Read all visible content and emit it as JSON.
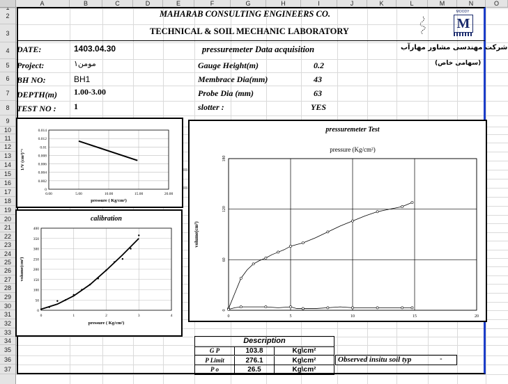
{
  "columns": [
    "A",
    "B",
    "C",
    "D",
    "E",
    "F",
    "G",
    "H",
    "I",
    "J",
    "K",
    "L",
    "M",
    "N",
    "O"
  ],
  "rows": [
    "1",
    "2",
    "3",
    "4",
    "5",
    "6",
    "7",
    "8",
    "9",
    "10",
    "11",
    "12",
    "13",
    "14",
    "15",
    "16",
    "17",
    "18",
    "19",
    "20",
    "21",
    "22",
    "23",
    "24",
    "25",
    "26",
    "27",
    "28",
    "29",
    "30",
    "31",
    "32",
    "33",
    "34",
    "35",
    "36",
    "37"
  ],
  "header": {
    "company": "MAHARAB CONSULTING ENGINEERS CO.",
    "lab": "TECHNICAL & SOIL MECHANIC LABORATORY",
    "farsi_company": "شرکت مهندسی مشاور مهارآب",
    "farsi_share": "(سهامی خاص)",
    "logo_text": "M",
    "logo_caption": "MOODY"
  },
  "fields": {
    "date_label": "DATE:",
    "date_value": "1403.04.30",
    "doc_title": "pressuremeter Data acquisition",
    "project_label": "Project:",
    "project_value": "مومن۱",
    "bh_label": "BH NO:",
    "bh_value": "BH1",
    "depth_label": "DEPTH(m)",
    "depth_value": "1.00-3.00",
    "test_label": "TEST NO :",
    "test_value": "1",
    "gauge_label": "Gauge Height(m)",
    "gauge_value": "0.2",
    "membrane_label": "Membrace Dia(mm)",
    "membrane_value": "43",
    "probe_label": "Probe Dia (mm)",
    "probe_value": "63",
    "slotter_label": "slotter :",
    "slotter_value": "YES"
  },
  "description": {
    "title": "Description",
    "rows": [
      {
        "symbol": "G P",
        "value": "103.8",
        "unit": "Kg\\cm²"
      },
      {
        "symbol": "P Limit",
        "value": "276.1",
        "unit": "Kg\\cm²"
      },
      {
        "symbol": "P o",
        "value": "26.5",
        "unit": "Kg\\cm²"
      }
    ],
    "observed_label": "Observed insitu soil typ",
    "observed_value": "-"
  },
  "chart_data": [
    {
      "type": "line",
      "title": "",
      "xlabel": "pressure ( Kg/cm²)",
      "ylabel": "1/V (cm³)⁻¹",
      "xlim": [
        0,
        20
      ],
      "ylim": [
        0,
        0.014
      ],
      "xticks": [
        "0.00",
        "5.00",
        "10.00",
        "15.00",
        "20.00"
      ],
      "yticks": [
        "0",
        "0.002",
        "0.004",
        "0.006",
        "0.008",
        "0.01",
        "0.012",
        "0.014"
      ],
      "series": [
        {
          "x": [
            5,
            14.8
          ],
          "y": [
            0.0114,
            0.0068
          ]
        }
      ],
      "grid": true
    },
    {
      "type": "scatter",
      "title": "calibration",
      "xlabel": "pressure ( Kg/cm²)",
      "ylabel": "volume(cm³)",
      "xlim": [
        0,
        4
      ],
      "ylim": [
        0,
        400
      ],
      "xticks": [
        "0",
        "1",
        "2",
        "3",
        "4"
      ],
      "yticks": [
        "0",
        "50",
        "100",
        "150",
        "200",
        "250",
        "300",
        "350",
        "400"
      ],
      "series": [
        {
          "x": [
            0,
            0.25,
            0.5,
            0.75,
            1,
            1.25,
            1.5,
            1.75,
            2,
            2.25,
            2.5,
            2.75,
            3
          ],
          "y": [
            5,
            15,
            45,
            50,
            75,
            100,
            125,
            155,
            195,
            235,
            250,
            300,
            365
          ],
          "style": "points"
        },
        {
          "x": [
            0,
            0.5,
            1,
            1.5,
            2,
            2.5,
            3
          ],
          "y": [
            5,
            30,
            70,
            125,
            195,
            270,
            350
          ],
          "style": "fit"
        }
      ],
      "grid": true
    },
    {
      "type": "line",
      "title": "pressuremeter Test",
      "subtitle": "pressure (Kg/cm²)",
      "xlabel": "",
      "ylabel": "volume(cm³)",
      "xlim": [
        0,
        20
      ],
      "ylim": [
        0,
        180
      ],
      "xticks": [
        "0",
        "5",
        "10",
        "15",
        "20"
      ],
      "yticks": [
        "0",
        "60",
        "120",
        "180"
      ],
      "series": [
        {
          "x": [
            0,
            0.5,
            1,
            1.5,
            2,
            2.5,
            3,
            3.5,
            4,
            4.5,
            5,
            5.5,
            6,
            7,
            8,
            9,
            10,
            11,
            12,
            13,
            14,
            14.8
          ],
          "y": [
            2,
            20,
            38,
            48,
            55,
            59,
            62,
            66,
            69,
            72,
            76,
            78,
            80,
            86,
            93,
            100,
            106,
            112,
            117,
            120,
            123,
            128
          ],
          "style": "line-markers"
        },
        {
          "x": [
            0,
            0.5,
            1,
            2,
            3,
            4,
            5,
            5.5,
            6,
            7,
            8,
            9,
            10,
            11,
            12,
            13,
            14,
            14.8
          ],
          "y": [
            1,
            3,
            4,
            4,
            4,
            3,
            4,
            2,
            2,
            2,
            3,
            4,
            3,
            3,
            3,
            3,
            3,
            3
          ],
          "style": "line-markers"
        }
      ],
      "grid": true
    }
  ]
}
